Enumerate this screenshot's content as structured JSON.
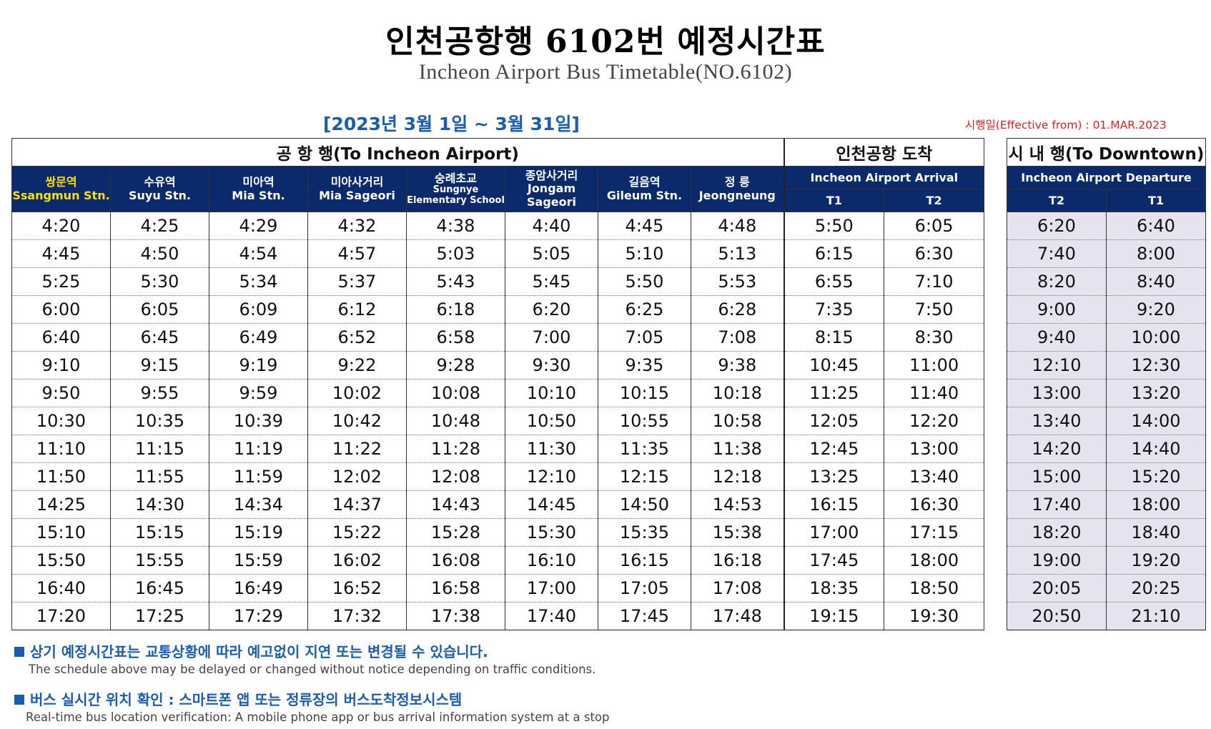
{
  "title_ko": "인천공항행 6102번 예정시간표",
  "title_en": "Incheon Airport Bus Timetable(NO.6102)",
  "period": "[2023년 3월 1일 ~ 3월 31일]",
  "effective": "시행일(Effective from) : 01.MAR.2023",
  "to_airport": {
    "header": "공 항 행(To Incheon Airport)",
    "stops": [
      {
        "ko": "쌍문역",
        "en": "Ssangmun Stn."
      },
      {
        "ko": "수유역",
        "en": "Suyu Stn."
      },
      {
        "ko": "미아역",
        "en": "Mia Stn."
      },
      {
        "ko": "미아사거리",
        "en": "Mia Sageori"
      },
      {
        "ko": "숭례초교",
        "en": "Sungnye",
        "en2": "Elementary School"
      },
      {
        "ko": "종암사거리",
        "en": "Jongam Sageori"
      },
      {
        "ko": "길음역",
        "en": "Gileum Stn."
      },
      {
        "ko": "정 릉",
        "en": "Jeongneung"
      }
    ],
    "arrival_header": "인천공항 도착",
    "arrival_sub": "Incheon Airport Arrival",
    "arrival_terminals": [
      "T1",
      "T2"
    ],
    "rows": [
      [
        "4:20",
        "4:25",
        "4:29",
        "4:32",
        "4:38",
        "4:40",
        "4:45",
        "4:48",
        "5:50",
        "6:05"
      ],
      [
        "4:45",
        "4:50",
        "4:54",
        "4:57",
        "5:03",
        "5:05",
        "5:10",
        "5:13",
        "6:15",
        "6:30"
      ],
      [
        "5:25",
        "5:30",
        "5:34",
        "5:37",
        "5:43",
        "5:45",
        "5:50",
        "5:53",
        "6:55",
        "7:10"
      ],
      [
        "6:00",
        "6:05",
        "6:09",
        "6:12",
        "6:18",
        "6:20",
        "6:25",
        "6:28",
        "7:35",
        "7:50"
      ],
      [
        "6:40",
        "6:45",
        "6:49",
        "6:52",
        "6:58",
        "7:00",
        "7:05",
        "7:08",
        "8:15",
        "8:30"
      ],
      [
        "9:10",
        "9:15",
        "9:19",
        "9:22",
        "9:28",
        "9:30",
        "9:35",
        "9:38",
        "10:45",
        "11:00"
      ],
      [
        "9:50",
        "9:55",
        "9:59",
        "10:02",
        "10:08",
        "10:10",
        "10:15",
        "10:18",
        "11:25",
        "11:40"
      ],
      [
        "10:30",
        "10:35",
        "10:39",
        "10:42",
        "10:48",
        "10:50",
        "10:55",
        "10:58",
        "12:05",
        "12:20"
      ],
      [
        "11:10",
        "11:15",
        "11:19",
        "11:22",
        "11:28",
        "11:30",
        "11:35",
        "11:38",
        "12:45",
        "13:00"
      ],
      [
        "11:50",
        "11:55",
        "11:59",
        "12:02",
        "12:08",
        "12:10",
        "12:15",
        "12:18",
        "13:25",
        "13:40"
      ],
      [
        "14:25",
        "14:30",
        "14:34",
        "14:37",
        "14:43",
        "14:45",
        "14:50",
        "14:53",
        "16:15",
        "16:30"
      ],
      [
        "15:10",
        "15:15",
        "15:19",
        "15:22",
        "15:28",
        "15:30",
        "15:35",
        "15:38",
        "17:00",
        "17:15"
      ],
      [
        "15:50",
        "15:55",
        "15:59",
        "16:02",
        "16:08",
        "16:10",
        "16:15",
        "16:18",
        "17:45",
        "18:00"
      ],
      [
        "16:40",
        "16:45",
        "16:49",
        "16:52",
        "16:58",
        "17:00",
        "17:05",
        "17:08",
        "18:35",
        "18:50"
      ],
      [
        "17:20",
        "17:25",
        "17:29",
        "17:32",
        "17:38",
        "17:40",
        "17:45",
        "17:48",
        "19:15",
        "19:30"
      ]
    ]
  },
  "to_downtown": {
    "header": "시 내 행(To Downtown)",
    "sub": "Incheon Airport Departure",
    "terminals": [
      "T2",
      "T1"
    ],
    "rows": [
      [
        "6:20",
        "6:40"
      ],
      [
        "7:40",
        "8:00"
      ],
      [
        "8:20",
        "8:40"
      ],
      [
        "9:00",
        "9:20"
      ],
      [
        "9:40",
        "10:00"
      ],
      [
        "12:10",
        "12:30"
      ],
      [
        "13:00",
        "13:20"
      ],
      [
        "13:40",
        "14:00"
      ],
      [
        "14:20",
        "14:40"
      ],
      [
        "15:00",
        "15:20"
      ],
      [
        "17:40",
        "18:00"
      ],
      [
        "18:20",
        "18:40"
      ],
      [
        "19:00",
        "19:20"
      ],
      [
        "20:05",
        "20:25"
      ],
      [
        "20:50",
        "21:10"
      ]
    ]
  },
  "notes": [
    {
      "ko": "상기 예정시간표는 교통상황에 따라 예고없이 지연 또는 변경될 수 있습니다.",
      "en": "The schedule above may be delayed or changed without notice depending on traffic conditions."
    },
    {
      "ko": "버스 실시간 위치 확인 : 스마트폰 앱 또는 정류장의 버스도착정보시스템",
      "en": "Real-time bus location verification: A mobile phone app or bus arrival information system at a stop"
    }
  ]
}
